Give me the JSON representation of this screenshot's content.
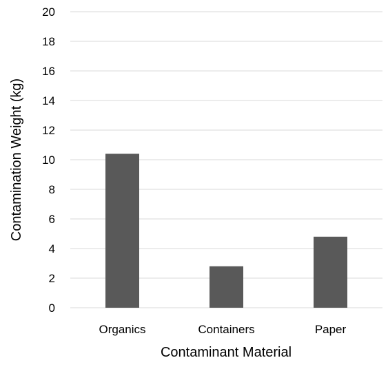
{
  "chart_data": {
    "type": "bar",
    "categories": [
      "Organics",
      "Containers",
      "Paper"
    ],
    "values": [
      10.4,
      2.8,
      4.8
    ],
    "title": "",
    "xlabel": "Contaminant Material",
    "ylabel": "Contamination Weight (kg)",
    "ylim": [
      0,
      20
    ],
    "yticks": [
      0,
      2,
      4,
      6,
      8,
      10,
      12,
      14,
      16,
      18,
      20
    ],
    "grid": true,
    "legend": "none",
    "bar_color": "#595959",
    "grid_color": "#d9d9d9"
  }
}
